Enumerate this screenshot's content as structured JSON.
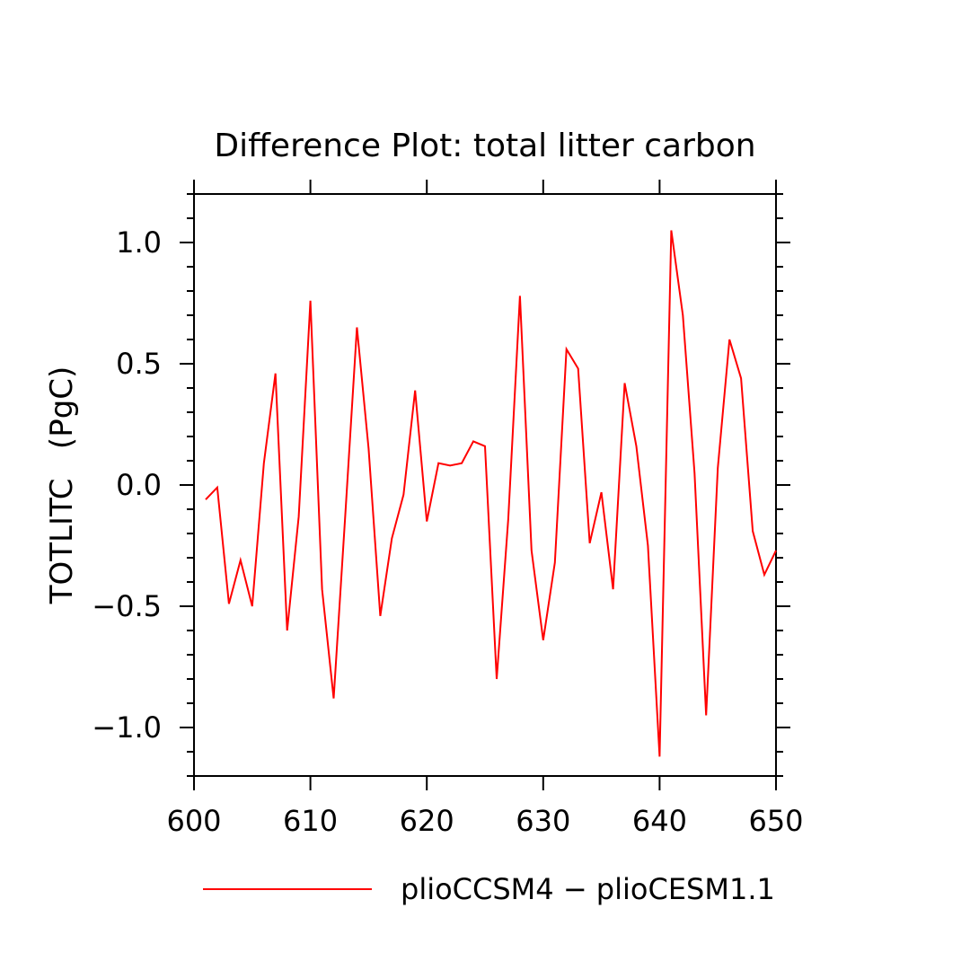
{
  "chart_data": {
    "type": "line",
    "title": "Difference Plot: total litter carbon",
    "xlabel": "",
    "ylabel": "TOTLITC   (PgC)",
    "xlim": [
      600,
      650
    ],
    "ylim": [
      -1.2,
      1.2
    ],
    "x_ticks": [
      600,
      610,
      620,
      630,
      640,
      650
    ],
    "x_tick_labels": [
      "600",
      "610",
      "620",
      "630",
      "640",
      "650"
    ],
    "y_ticks": [
      -1.0,
      -0.5,
      0.0,
      0.5,
      1.0
    ],
    "y_tick_labels": [
      "−1.0",
      "−0.5",
      "0.0",
      "0.5",
      "1.0"
    ],
    "grid": false,
    "legend_position": "bottom",
    "series": [
      {
        "name": "plioCCSM4 − plioCESM1.1",
        "color": "#ff0000",
        "x": [
          601,
          602,
          603,
          604,
          605,
          606,
          607,
          608,
          609,
          610,
          611,
          612,
          613,
          614,
          615,
          616,
          617,
          618,
          619,
          620,
          621,
          622,
          623,
          624,
          625,
          626,
          627,
          628,
          629,
          630,
          631,
          632,
          633,
          634,
          635,
          636,
          637,
          638,
          639,
          640,
          641,
          642,
          643,
          644,
          645,
          646,
          647,
          648,
          649,
          650
        ],
        "y": [
          -0.06,
          -0.01,
          -0.49,
          -0.31,
          -0.5,
          0.09,
          0.46,
          -0.6,
          -0.13,
          0.76,
          -0.43,
          -0.88,
          -0.12,
          0.65,
          0.15,
          -0.54,
          -0.22,
          -0.04,
          0.39,
          -0.15,
          0.09,
          0.08,
          0.09,
          0.18,
          0.16,
          -0.8,
          -0.14,
          0.78,
          -0.27,
          -0.64,
          -0.32,
          0.56,
          0.48,
          -0.24,
          -0.03,
          -0.43,
          0.42,
          0.16,
          -0.25,
          -1.12,
          1.05,
          0.7,
          0.05,
          -0.95,
          0.07,
          0.6,
          0.44,
          -0.19,
          -0.37,
          -0.27
        ]
      }
    ]
  }
}
